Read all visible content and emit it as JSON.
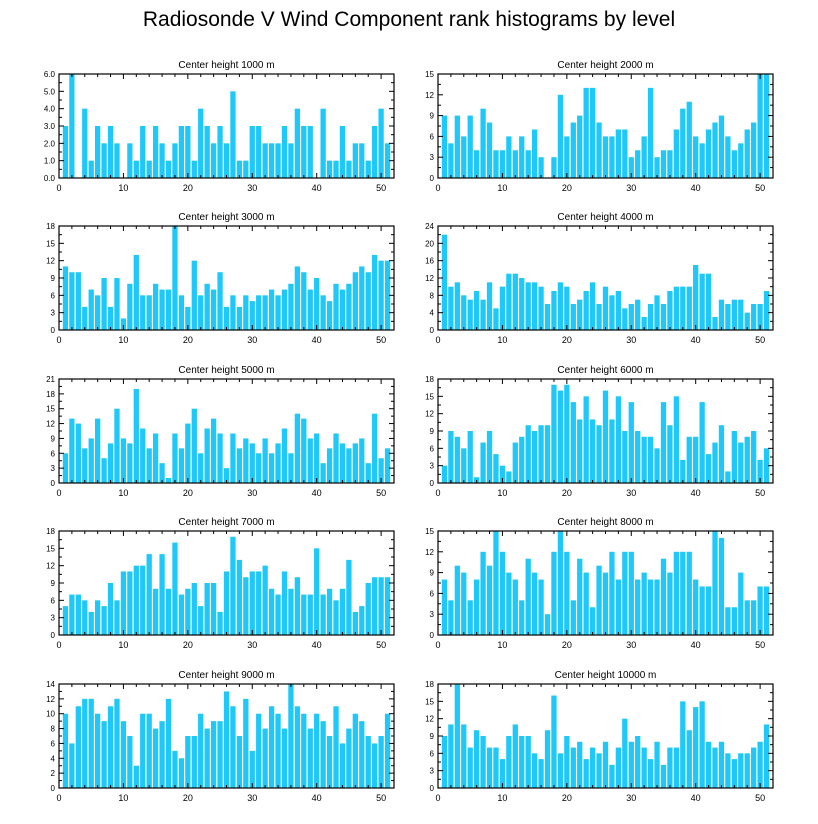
{
  "title": "Radiosonde V Wind Component rank histograms by level",
  "colors": {
    "bar": "#1EC8F8",
    "axis": "#000000"
  },
  "chart_data": [
    {
      "type": "bar",
      "title": "Center height 1000 m",
      "ylim": [
        0,
        6
      ],
      "yticks": [
        0,
        1,
        2,
        3,
        4,
        5,
        6
      ],
      "ytick_labels": [
        "0.0",
        "1.0",
        "2.0",
        "3.0",
        "4.0",
        "5.0",
        "6.0"
      ],
      "xlim": [
        0,
        52
      ],
      "xticks": [
        0,
        10,
        20,
        30,
        40,
        50
      ],
      "x": [
        1,
        2,
        3,
        4,
        5,
        6,
        7,
        8,
        9,
        10,
        11,
        12,
        13,
        14,
        15,
        16,
        17,
        18,
        19,
        20,
        21,
        22,
        23,
        24,
        25,
        26,
        27,
        28,
        29,
        30,
        31,
        32,
        33,
        34,
        35,
        36,
        37,
        38,
        39,
        40,
        41,
        42,
        43,
        44,
        45,
        46,
        47,
        48,
        49,
        50,
        51
      ],
      "values": [
        3,
        6,
        0,
        4,
        1,
        3,
        2,
        3,
        2,
        0,
        2,
        1,
        3,
        1,
        3,
        2,
        1,
        2,
        3,
        3,
        1,
        4,
        3,
        2,
        3,
        2,
        5,
        1,
        1,
        3,
        3,
        2,
        2,
        2,
        3,
        2,
        4,
        3,
        3,
        0,
        4,
        1,
        1,
        3,
        1,
        2,
        2,
        1,
        3,
        4,
        2
      ]
    },
    {
      "type": "bar",
      "title": "Center height 2000 m",
      "ylim": [
        0,
        15
      ],
      "yticks": [
        0,
        3,
        6,
        9,
        12,
        15
      ],
      "ytick_labels": [
        "0",
        "3",
        "6",
        "9",
        "12",
        "15"
      ],
      "xlim": [
        0,
        52
      ],
      "xticks": [
        0,
        10,
        20,
        30,
        40,
        50
      ],
      "x": [
        1,
        2,
        3,
        4,
        5,
        6,
        7,
        8,
        9,
        10,
        11,
        12,
        13,
        14,
        15,
        16,
        17,
        18,
        19,
        20,
        21,
        22,
        23,
        24,
        25,
        26,
        27,
        28,
        29,
        30,
        31,
        32,
        33,
        34,
        35,
        36,
        37,
        38,
        39,
        40,
        41,
        42,
        43,
        44,
        45,
        46,
        47,
        48,
        49,
        50,
        51
      ],
      "values": [
        9,
        5,
        9,
        6,
        9,
        4,
        10,
        8,
        4,
        4,
        6,
        4,
        6,
        4,
        7,
        3,
        0,
        3,
        12,
        6,
        8,
        9,
        13,
        13,
        8,
        6,
        6,
        7,
        7,
        3,
        4,
        6,
        13,
        3,
        4,
        4,
        7,
        10,
        11,
        6,
        5,
        7,
        8,
        9,
        6,
        4,
        5,
        7,
        8,
        15,
        15
      ]
    },
    {
      "type": "bar",
      "title": "Center height 3000 m",
      "ylim": [
        0,
        18
      ],
      "yticks": [
        0,
        3,
        6,
        9,
        12,
        15,
        18
      ],
      "ytick_labels": [
        "0",
        "3",
        "6",
        "9",
        "12",
        "15",
        "18"
      ],
      "xlim": [
        0,
        52
      ],
      "xticks": [
        0,
        10,
        20,
        30,
        40,
        50
      ],
      "x": [
        1,
        2,
        3,
        4,
        5,
        6,
        7,
        8,
        9,
        10,
        11,
        12,
        13,
        14,
        15,
        16,
        17,
        18,
        19,
        20,
        21,
        22,
        23,
        24,
        25,
        26,
        27,
        28,
        29,
        30,
        31,
        32,
        33,
        34,
        35,
        36,
        37,
        38,
        39,
        40,
        41,
        42,
        43,
        44,
        45,
        46,
        47,
        48,
        49,
        50,
        51
      ],
      "values": [
        11,
        10,
        10,
        4,
        7,
        6,
        9,
        4,
        9,
        2,
        8,
        13,
        6,
        6,
        8,
        7,
        7,
        18,
        6,
        4,
        12,
        6,
        8,
        7,
        10,
        4,
        6,
        4,
        6,
        5,
        6,
        6,
        7,
        6,
        7,
        8,
        11,
        10,
        7,
        9,
        6,
        5,
        8,
        7,
        8,
        10,
        11,
        10,
        13,
        12,
        12
      ]
    },
    {
      "type": "bar",
      "title": "Center height 4000 m",
      "ylim": [
        0,
        24
      ],
      "yticks": [
        0,
        4,
        8,
        12,
        16,
        20,
        24
      ],
      "ytick_labels": [
        "0",
        "4",
        "8",
        "12",
        "16",
        "20",
        "24"
      ],
      "xlim": [
        0,
        52
      ],
      "xticks": [
        0,
        10,
        20,
        30,
        40,
        50
      ],
      "x": [
        1,
        2,
        3,
        4,
        5,
        6,
        7,
        8,
        9,
        10,
        11,
        12,
        13,
        14,
        15,
        16,
        17,
        18,
        19,
        20,
        21,
        22,
        23,
        24,
        25,
        26,
        27,
        28,
        29,
        30,
        31,
        32,
        33,
        34,
        35,
        36,
        37,
        38,
        39,
        40,
        41,
        42,
        43,
        44,
        45,
        46,
        47,
        48,
        49,
        50,
        51
      ],
      "values": [
        22,
        10,
        11,
        8,
        7,
        9,
        7,
        11,
        5,
        10,
        13,
        13,
        12,
        11,
        11,
        10,
        6,
        9,
        11,
        10,
        6,
        7,
        9,
        11,
        6,
        10,
        8,
        9,
        5,
        6,
        7,
        3,
        6,
        8,
        6,
        9,
        10,
        10,
        10,
        15,
        13,
        13,
        3,
        7,
        6,
        7,
        7,
        4,
        6,
        6,
        9
      ]
    },
    {
      "type": "bar",
      "title": "Center height 5000 m",
      "ylim": [
        0,
        21
      ],
      "yticks": [
        0,
        3,
        6,
        9,
        12,
        15,
        18,
        21
      ],
      "ytick_labels": [
        "0",
        "3",
        "6",
        "9",
        "12",
        "15",
        "18",
        "21"
      ],
      "xlim": [
        0,
        52
      ],
      "xticks": [
        0,
        10,
        20,
        30,
        40,
        50
      ],
      "x": [
        1,
        2,
        3,
        4,
        5,
        6,
        7,
        8,
        9,
        10,
        11,
        12,
        13,
        14,
        15,
        16,
        17,
        18,
        19,
        20,
        21,
        22,
        23,
        24,
        25,
        26,
        27,
        28,
        29,
        30,
        31,
        32,
        33,
        34,
        35,
        36,
        37,
        38,
        39,
        40,
        41,
        42,
        43,
        44,
        45,
        46,
        47,
        48,
        49,
        50,
        51
      ],
      "values": [
        6,
        13,
        12,
        7,
        9,
        13,
        5,
        8,
        15,
        9,
        8,
        19,
        11,
        7,
        10,
        4,
        1,
        10,
        7,
        12,
        15,
        6,
        11,
        13,
        10,
        3,
        10,
        7,
        9,
        8,
        6,
        9,
        6,
        8,
        11,
        6,
        14,
        13,
        9,
        10,
        4,
        7,
        10,
        8,
        7,
        8,
        9,
        4,
        14,
        5,
        7
      ]
    },
    {
      "type": "bar",
      "title": "Center height 6000 m",
      "ylim": [
        0,
        18
      ],
      "yticks": [
        0,
        3,
        6,
        9,
        12,
        15,
        18
      ],
      "ytick_labels": [
        "0",
        "3",
        "6",
        "9",
        "12",
        "15",
        "18"
      ],
      "xlim": [
        0,
        52
      ],
      "xticks": [
        0,
        10,
        20,
        30,
        40,
        50
      ],
      "x": [
        1,
        2,
        3,
        4,
        5,
        6,
        7,
        8,
        9,
        10,
        11,
        12,
        13,
        14,
        15,
        16,
        17,
        18,
        19,
        20,
        21,
        22,
        23,
        24,
        25,
        26,
        27,
        28,
        29,
        30,
        31,
        32,
        33,
        34,
        35,
        36,
        37,
        38,
        39,
        40,
        41,
        42,
        43,
        44,
        45,
        46,
        47,
        48,
        49,
        50,
        51
      ],
      "values": [
        3,
        9,
        8,
        6,
        9,
        1,
        7,
        9,
        5,
        3,
        2,
        7,
        8,
        10,
        9,
        10,
        10,
        17,
        16,
        17,
        14,
        11,
        15,
        11,
        10,
        16,
        11,
        15,
        9,
        14,
        9,
        8,
        8,
        6,
        14,
        10,
        15,
        4,
        8,
        8,
        14,
        5,
        7,
        10,
        2,
        9,
        7,
        8,
        9,
        4,
        6
      ]
    },
    {
      "type": "bar",
      "title": "Center height 7000 m",
      "ylim": [
        0,
        18
      ],
      "yticks": [
        0,
        3,
        6,
        9,
        12,
        15,
        18
      ],
      "ytick_labels": [
        "0",
        "3",
        "6",
        "9",
        "12",
        "15",
        "18"
      ],
      "xlim": [
        0,
        52
      ],
      "xticks": [
        0,
        10,
        20,
        30,
        40,
        50
      ],
      "x": [
        1,
        2,
        3,
        4,
        5,
        6,
        7,
        8,
        9,
        10,
        11,
        12,
        13,
        14,
        15,
        16,
        17,
        18,
        19,
        20,
        21,
        22,
        23,
        24,
        25,
        26,
        27,
        28,
        29,
        30,
        31,
        32,
        33,
        34,
        35,
        36,
        37,
        38,
        39,
        40,
        41,
        42,
        43,
        44,
        45,
        46,
        47,
        48,
        49,
        50,
        51
      ],
      "values": [
        5,
        7,
        7,
        6,
        4,
        6,
        5,
        9,
        6,
        11,
        11,
        12,
        12,
        14,
        8,
        14,
        8,
        16,
        7,
        8,
        9,
        5,
        9,
        9,
        4,
        11,
        17,
        13,
        10,
        11,
        11,
        12,
        8,
        7,
        11,
        8,
        10,
        7,
        7,
        15,
        7,
        8,
        6,
        8,
        13,
        4,
        5,
        9,
        10,
        10,
        10
      ]
    },
    {
      "type": "bar",
      "title": "Center height 8000 m",
      "ylim": [
        0,
        15
      ],
      "yticks": [
        0,
        3,
        6,
        9,
        12,
        15
      ],
      "ytick_labels": [
        "0",
        "3",
        "6",
        "9",
        "12",
        "15"
      ],
      "xlim": [
        0,
        52
      ],
      "xticks": [
        0,
        10,
        20,
        30,
        40,
        50
      ],
      "x": [
        1,
        2,
        3,
        4,
        5,
        6,
        7,
        8,
        9,
        10,
        11,
        12,
        13,
        14,
        15,
        16,
        17,
        18,
        19,
        20,
        21,
        22,
        23,
        24,
        25,
        26,
        27,
        28,
        29,
        30,
        31,
        32,
        33,
        34,
        35,
        36,
        37,
        38,
        39,
        40,
        41,
        42,
        43,
        44,
        45,
        46,
        47,
        48,
        49,
        50,
        51
      ],
      "values": [
        8,
        5,
        10,
        9,
        5,
        8,
        12,
        10,
        15,
        12,
        9,
        8,
        5,
        11,
        9,
        8,
        3,
        12,
        15,
        12,
        5,
        11,
        9,
        4,
        10,
        9,
        12,
        8,
        12,
        12,
        8,
        9,
        8,
        8,
        11,
        9,
        12,
        12,
        12,
        8,
        7,
        7,
        15,
        14,
        4,
        4,
        9,
        5,
        5,
        7,
        7
      ]
    },
    {
      "type": "bar",
      "title": "Center height 9000 m",
      "ylim": [
        0,
        14
      ],
      "yticks": [
        0,
        2,
        4,
        6,
        8,
        10,
        12,
        14
      ],
      "ytick_labels": [
        "0",
        "2",
        "4",
        "6",
        "8",
        "10",
        "12",
        "14"
      ],
      "xlim": [
        0,
        52
      ],
      "xticks": [
        0,
        10,
        20,
        30,
        40,
        50
      ],
      "x": [
        1,
        2,
        3,
        4,
        5,
        6,
        7,
        8,
        9,
        10,
        11,
        12,
        13,
        14,
        15,
        16,
        17,
        18,
        19,
        20,
        21,
        22,
        23,
        24,
        25,
        26,
        27,
        28,
        29,
        30,
        31,
        32,
        33,
        34,
        35,
        36,
        37,
        38,
        39,
        40,
        41,
        42,
        43,
        44,
        45,
        46,
        47,
        48,
        49,
        50,
        51
      ],
      "values": [
        10,
        6,
        11,
        12,
        12,
        10,
        9,
        11,
        12,
        9,
        7,
        3,
        10,
        10,
        8,
        9,
        12,
        5,
        4,
        7,
        7,
        10,
        8,
        9,
        9,
        13,
        11,
        7,
        12,
        5,
        10,
        8,
        11,
        10,
        8,
        14,
        11,
        10,
        8,
        10,
        9,
        7,
        11,
        6,
        8,
        10,
        9,
        7,
        6,
        7,
        10
      ]
    },
    {
      "type": "bar",
      "title": "Center height 10000 m",
      "ylim": [
        0,
        18
      ],
      "yticks": [
        0,
        3,
        6,
        9,
        12,
        15,
        18
      ],
      "ytick_labels": [
        "0",
        "3",
        "6",
        "9",
        "12",
        "15",
        "18"
      ],
      "xlim": [
        0,
        52
      ],
      "xticks": [
        0,
        10,
        20,
        30,
        40,
        50
      ],
      "x": [
        1,
        2,
        3,
        4,
        5,
        6,
        7,
        8,
        9,
        10,
        11,
        12,
        13,
        14,
        15,
        16,
        17,
        18,
        19,
        20,
        21,
        22,
        23,
        24,
        25,
        26,
        27,
        28,
        29,
        30,
        31,
        32,
        33,
        34,
        35,
        36,
        37,
        38,
        39,
        40,
        41,
        42,
        43,
        44,
        45,
        46,
        47,
        48,
        49,
        50,
        51
      ],
      "values": [
        9,
        11,
        18,
        11,
        7,
        10,
        9,
        7,
        7,
        5,
        9,
        11,
        9,
        9,
        6,
        5,
        10,
        16,
        6,
        9,
        7,
        8,
        5,
        7,
        6,
        8,
        4,
        7,
        12,
        8,
        9,
        7,
        5,
        8,
        4,
        7,
        7,
        15,
        10,
        14,
        15,
        8,
        7,
        8,
        6,
        5,
        6,
        6,
        7,
        8,
        11
      ]
    }
  ]
}
